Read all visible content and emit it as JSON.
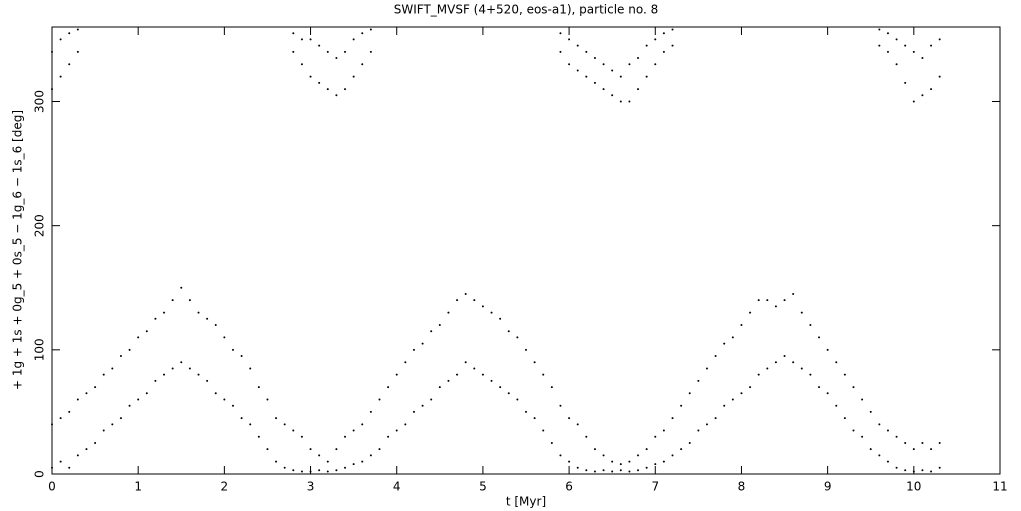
{
  "chart_data": {
    "type": "scatter",
    "title": "SWIFT_MVSF (4+520, eos-a1), particle no. 8",
    "xlabel": "t [Myr]",
    "ylabel": "+ 1g + 1s + 0g_5 + 0s_5 − 1g_6 − 1s_6 [deg]",
    "color": "#000000",
    "xlim": [
      0,
      11
    ],
    "ylim": [
      0,
      360
    ],
    "xticks": [
      0,
      1,
      2,
      3,
      4,
      5,
      6,
      7,
      8,
      9,
      10,
      11
    ],
    "yticks": [
      0,
      100,
      200,
      300
    ],
    "x": [
      0,
      0,
      0.1,
      0.1,
      0.2,
      0.2,
      0.3,
      0.3,
      0.4,
      0.4,
      0.5,
      0.5,
      0.6,
      0.6,
      0.7,
      0.7,
      0.8,
      0.8,
      0.9,
      0.9,
      1,
      1,
      1.1,
      1.1,
      1.2,
      1.2,
      1.3,
      1.3,
      1.4,
      1.4,
      1.5,
      1.5,
      1.6,
      1.6,
      1.7,
      1.7,
      1.8,
      1.8,
      1.9,
      1.9,
      2,
      2,
      2.1,
      2.1,
      2.2,
      2.2,
      2.3,
      2.3,
      2.4,
      2.4,
      2.5,
      2.5,
      2.6,
      2.6,
      2.7,
      2.7,
      2.8,
      2.8,
      2.9,
      2.9,
      3,
      3,
      3.1,
      3.1,
      3.2,
      3.2,
      3.3,
      3.3,
      3.4,
      3.4,
      3.5,
      3.5,
      3.6,
      3.6,
      3.7,
      3.7,
      3.8,
      3.8,
      3.9,
      3.9,
      4,
      4,
      4.1,
      4.1,
      4.2,
      4.2,
      4.3,
      4.3,
      4.4,
      4.4,
      4.5,
      4.5,
      4.6,
      4.6,
      4.7,
      4.7,
      4.8,
      4.8,
      4.9,
      4.9,
      5,
      5,
      5.1,
      5.1,
      5.2,
      5.2,
      5.3,
      5.3,
      5.4,
      5.4,
      5.5,
      5.5,
      5.6,
      5.6,
      5.7,
      5.7,
      5.8,
      5.8,
      5.9,
      5.9,
      6,
      6,
      6.1,
      6.1,
      6.2,
      6.2,
      6.3,
      6.3,
      6.4,
      6.4,
      6.5,
      6.5,
      6.6,
      6.6,
      6.7,
      6.7,
      6.8,
      6.8,
      6.9,
      6.9,
      7,
      7,
      7.1,
      7.1,
      7.2,
      7.2,
      7.3,
      7.3,
      7.4,
      7.4,
      7.5,
      7.5,
      7.6,
      7.6,
      7.7,
      7.7,
      7.8,
      7.8,
      7.9,
      7.9,
      8,
      8,
      8.1,
      8.1,
      8.2,
      8.2,
      8.3,
      8.3,
      8.4,
      8.4,
      8.5,
      8.5,
      8.6,
      8.6,
      8.7,
      8.7,
      8.8,
      8.8,
      8.9,
      8.9,
      9,
      9,
      9.1,
      9.1,
      9.2,
      9.2,
      9.3,
      9.3,
      9.4,
      9.4,
      9.5,
      9.5,
      9.6,
      9.6,
      9.7,
      9.7,
      9.8,
      9.8,
      9.9,
      9.9,
      10,
      10,
      10.1,
      10.1,
      10.2,
      10.2,
      10.3,
      10.3,
      0,
      0,
      0.1,
      0.1,
      0.2,
      0.2,
      0.3,
      0.3,
      2.8,
      2.8,
      2.9,
      2.9,
      3,
      3,
      3.1,
      3.1,
      3.2,
      3.2,
      3.3,
      3.3,
      3.4,
      3.4,
      3.5,
      3.5,
      3.6,
      3.6,
      3.7,
      3.7,
      5.9,
      5.9,
      6,
      6,
      6.1,
      6.1,
      6.2,
      6.2,
      6.3,
      6.3,
      6.4,
      6.4,
      6.5,
      6.5,
      6.6,
      6.6,
      6.7,
      6.7,
      6.8,
      6.8,
      6.9,
      6.9,
      7,
      7,
      7.1,
      7.1,
      7.2,
      7.2,
      9.6,
      9.6,
      9.7,
      9.7,
      9.8,
      9.8,
      9.9,
      9.9,
      10,
      10,
      10.1,
      10.1,
      10.2,
      10.2,
      10.3,
      10.3
    ],
    "values": [
      5,
      40,
      10,
      45,
      5,
      50,
      15,
      60,
      20,
      65,
      25,
      70,
      35,
      80,
      40,
      85,
      45,
      95,
      55,
      100,
      60,
      110,
      65,
      115,
      75,
      125,
      80,
      130,
      85,
      140,
      90,
      150,
      85,
      140,
      80,
      130,
      75,
      125,
      65,
      120,
      60,
      110,
      55,
      100,
      45,
      95,
      40,
      85,
      30,
      70,
      20,
      60,
      10,
      45,
      5,
      40,
      3,
      35,
      2,
      30,
      2,
      20,
      3,
      15,
      2,
      10,
      3,
      20,
      5,
      30,
      8,
      35,
      10,
      40,
      15,
      50,
      20,
      60,
      30,
      70,
      35,
      80,
      40,
      90,
      50,
      100,
      55,
      105,
      60,
      115,
      70,
      120,
      75,
      130,
      80,
      140,
      90,
      145,
      85,
      140,
      80,
      135,
      75,
      130,
      70,
      125,
      65,
      115,
      60,
      110,
      50,
      100,
      45,
      90,
      35,
      80,
      25,
      70,
      15,
      55,
      10,
      45,
      5,
      40,
      3,
      30,
      2,
      20,
      3,
      15,
      2,
      10,
      3,
      8,
      2,
      10,
      3,
      15,
      5,
      20,
      8,
      30,
      10,
      35,
      15,
      45,
      20,
      55,
      25,
      65,
      35,
      75,
      40,
      85,
      45,
      95,
      55,
      105,
      60,
      110,
      65,
      120,
      70,
      130,
      80,
      140,
      85,
      140,
      90,
      135,
      95,
      140,
      90,
      145,
      85,
      130,
      80,
      120,
      70,
      110,
      65,
      100,
      55,
      90,
      45,
      80,
      35,
      70,
      30,
      60,
      20,
      50,
      15,
      40,
      10,
      35,
      5,
      30,
      3,
      25,
      2,
      20,
      3,
      25,
      2,
      20,
      5,
      25,
      310,
      340,
      320,
      350,
      330,
      355,
      340,
      358,
      340,
      355,
      330,
      350,
      320,
      350,
      315,
      345,
      310,
      340,
      305,
      335,
      310,
      340,
      320,
      350,
      330,
      355,
      340,
      358,
      340,
      355,
      330,
      350,
      325,
      345,
      320,
      340,
      315,
      335,
      310,
      330,
      305,
      325,
      300,
      320,
      300,
      330,
      310,
      335,
      320,
      345,
      330,
      350,
      340,
      355,
      345,
      358,
      345,
      358,
      340,
      355,
      330,
      350,
      315,
      345,
      300,
      340,
      305,
      335,
      310,
      345,
      320,
      350
    ]
  }
}
